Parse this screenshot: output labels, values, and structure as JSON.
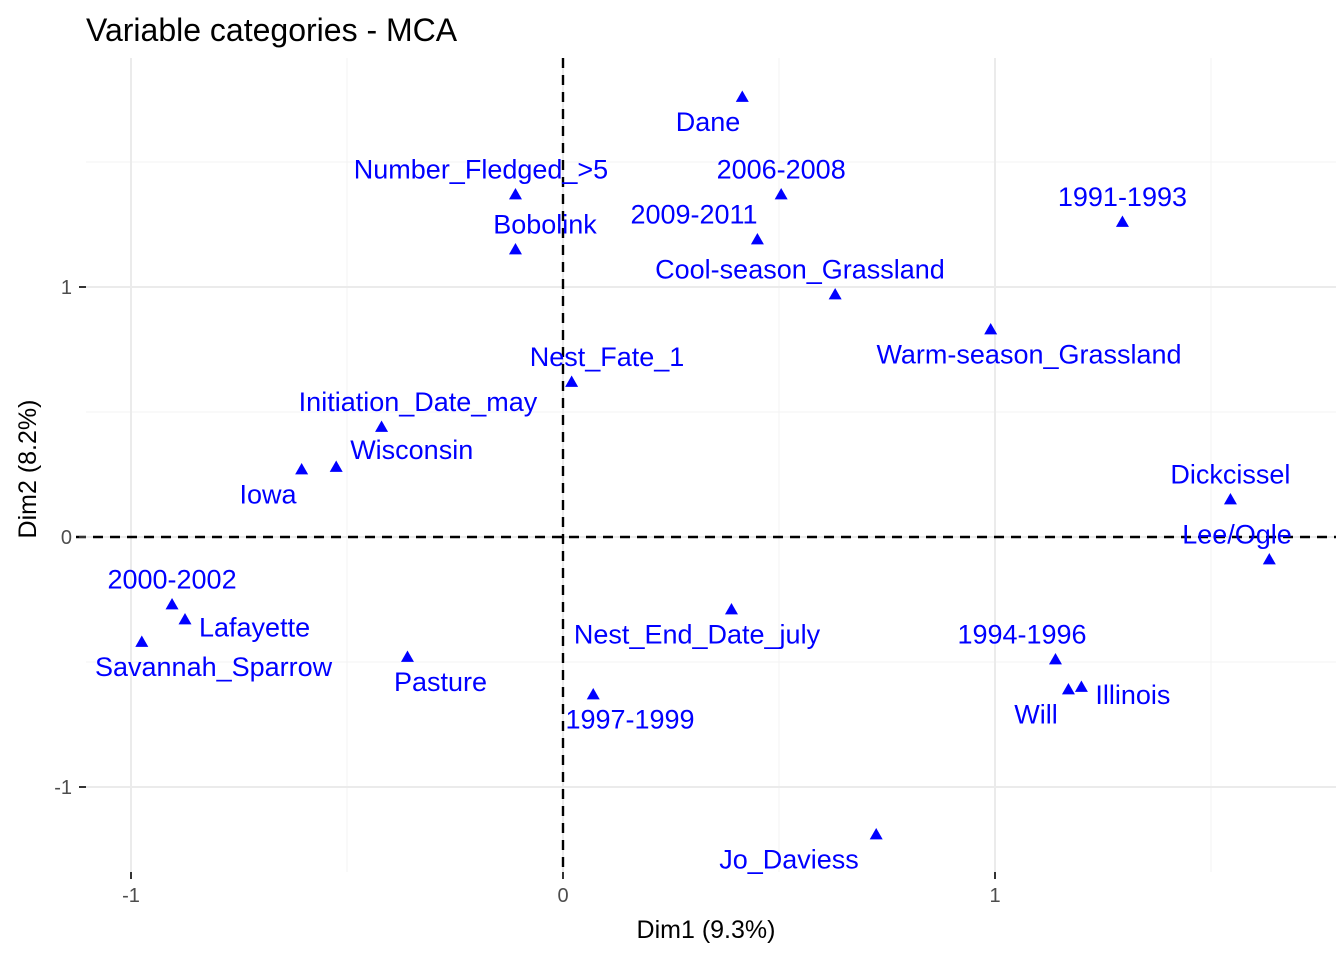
{
  "chart_data": {
    "type": "scatter",
    "title": "Variable categories - MCA",
    "xlabel": "Dim1 (9.3%)",
    "ylabel": "Dim2 (8.2%)",
    "xlim": [
      -1.12,
      1.8
    ],
    "ylim": [
      -1.37,
      1.9
    ],
    "x_ticks": [
      -1,
      0,
      1
    ],
    "x_tick_labels": [
      "-1",
      "0",
      "1"
    ],
    "y_ticks": [
      -1,
      0,
      1
    ],
    "y_tick_labels": [
      "-1",
      "0",
      "1"
    ],
    "grid": true,
    "reference_lines": {
      "x": 0,
      "y": 0,
      "style": "dashed"
    },
    "point_color": "#0000ff",
    "point_shape": "triangle",
    "points": [
      {
        "label": "Dane",
        "x": 0.415,
        "y": 1.76,
        "label_pos": "below-left"
      },
      {
        "label": "2006-2008",
        "x": 0.505,
        "y": 1.37,
        "label_pos": "above"
      },
      {
        "label": "Number_Fledged_>5",
        "x": -0.11,
        "y": 1.37,
        "label_pos": "above"
      },
      {
        "label": "1991-1993",
        "x": 1.295,
        "y": 1.26,
        "label_pos": "above"
      },
      {
        "label": "2009-2011",
        "x": 0.45,
        "y": 1.19,
        "label_pos": "above-left"
      },
      {
        "label": "Bobolink",
        "x": -0.11,
        "y": 1.15,
        "label_pos": "above"
      },
      {
        "label": "Cool-season_Grassland",
        "x": 0.63,
        "y": 0.97,
        "label_pos": "above"
      },
      {
        "label": "Warm-season_Grassland",
        "x": 0.99,
        "y": 0.83,
        "label_pos": "below"
      },
      {
        "label": "Nest_Fate_1",
        "x": 0.02,
        "y": 0.62,
        "label_pos": "above"
      },
      {
        "label": "Initiation_Date_may",
        "x": -0.42,
        "y": 0.44,
        "label_pos": "above"
      },
      {
        "label": "Wisconsin",
        "x": -0.525,
        "y": 0.28,
        "label_pos": "above-right"
      },
      {
        "label": "Iowa",
        "x": -0.605,
        "y": 0.27,
        "label_pos": "below-left"
      },
      {
        "label": "Dickcissel",
        "x": 1.545,
        "y": 0.15,
        "label_pos": "above"
      },
      {
        "label": "Lee/Ogle",
        "x": 1.635,
        "y": -0.09,
        "label_pos": "above-left"
      },
      {
        "label": "2000-2002",
        "x": -0.905,
        "y": -0.27,
        "label_pos": "above"
      },
      {
        "label": "Lafayette",
        "x": -0.875,
        "y": -0.33,
        "label_pos": "right"
      },
      {
        "label": "Savannah_Sparrow",
        "x": -0.975,
        "y": -0.42,
        "label_pos": "below-right"
      },
      {
        "label": "Nest_End_Date_july",
        "x": 0.39,
        "y": -0.29,
        "label_pos": "below"
      },
      {
        "label": "Pasture",
        "x": -0.36,
        "y": -0.48,
        "label_pos": "below-right"
      },
      {
        "label": "1997-1999",
        "x": 0.07,
        "y": -0.63,
        "label_pos": "below"
      },
      {
        "label": "1994-1996",
        "x": 1.14,
        "y": -0.49,
        "label_pos": "above-left"
      },
      {
        "label": "Illinois",
        "x": 1.2,
        "y": -0.6,
        "label_pos": "right"
      },
      {
        "label": "Will",
        "x": 1.17,
        "y": -0.61,
        "label_pos": "below-left"
      },
      {
        "label": "Jo_Daviess",
        "x": 0.725,
        "y": -1.19,
        "label_pos": "below-left"
      }
    ]
  }
}
